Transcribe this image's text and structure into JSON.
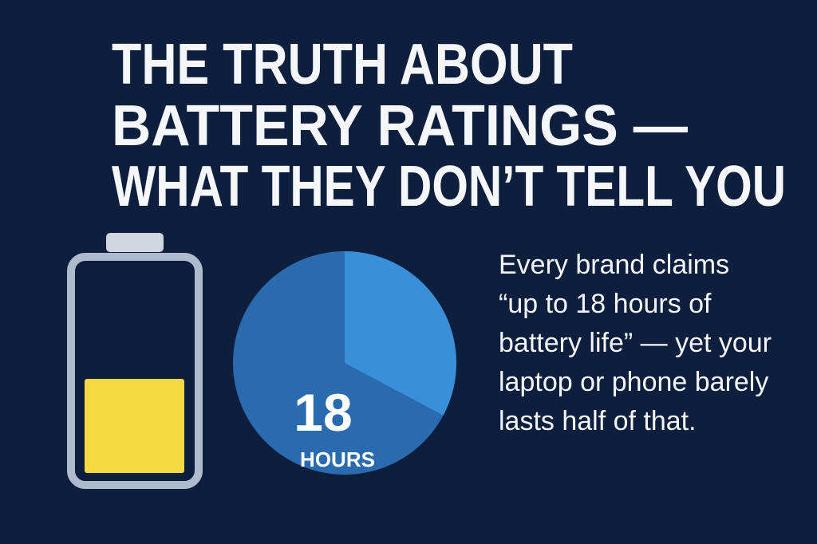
{
  "title": {
    "lines": [
      "THE TRUTH ABOUT",
      "BATTERY RATINGS —",
      "WHAT THEY DON’T TELL YOU"
    ]
  },
  "pie_label": {
    "number": "18",
    "unit": "HOURS"
  },
  "body": {
    "lines": [
      "Every brand claims",
      "“up to 18 hours of",
      "battery life” — yet your",
      "laptop or phone barely",
      "lasts half of that."
    ]
  }
}
